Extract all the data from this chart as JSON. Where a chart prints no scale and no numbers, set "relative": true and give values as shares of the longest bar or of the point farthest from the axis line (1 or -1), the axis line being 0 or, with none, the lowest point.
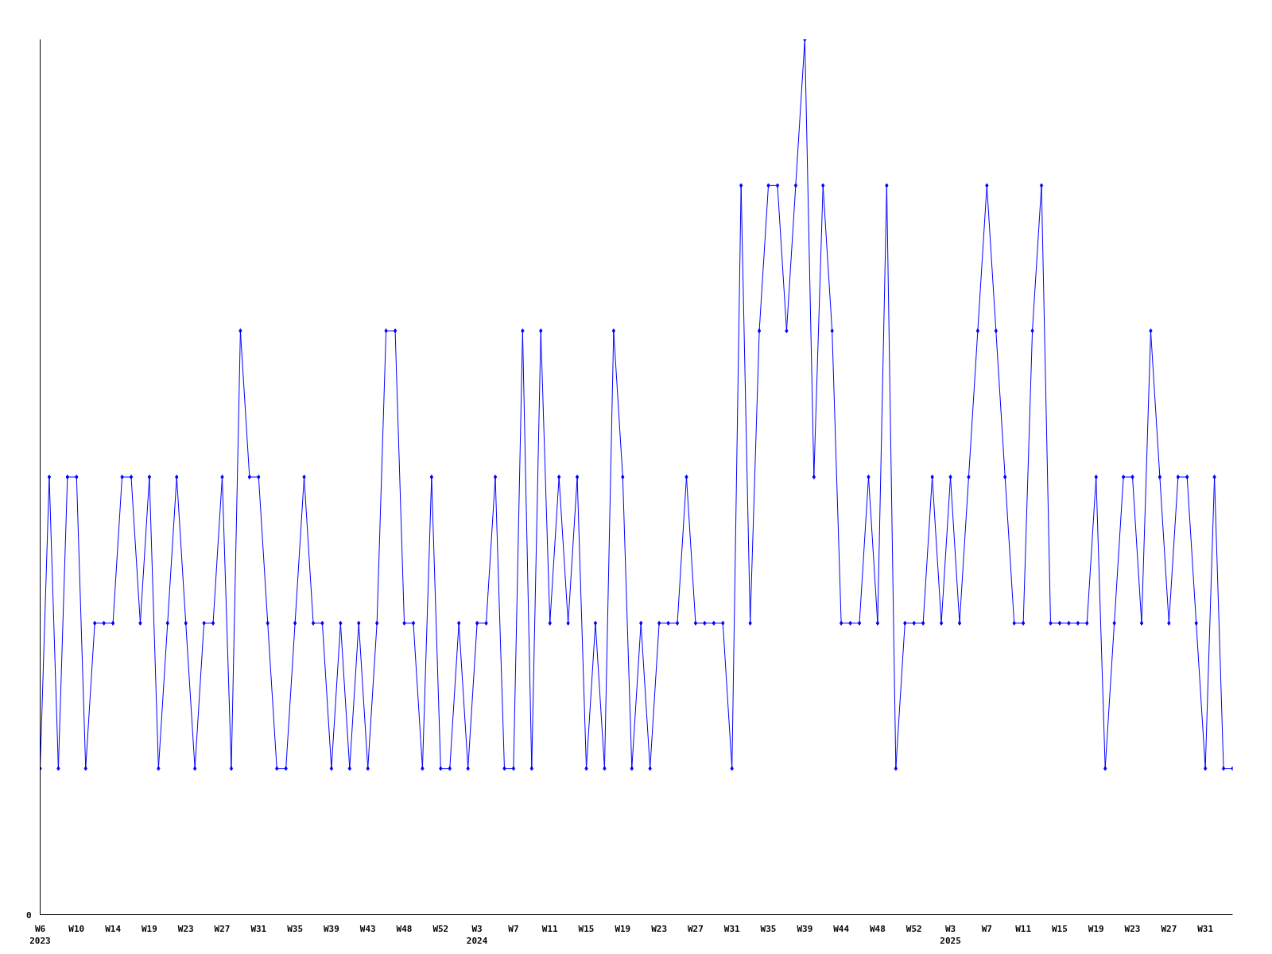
{
  "chart_data": {
    "type": "line",
    "relative": true,
    "annotations": [
      "0"
    ],
    "marker": "diamond",
    "grid": false,
    "categories": [
      "W6\n2023",
      null,
      null,
      null,
      "W10",
      null,
      null,
      null,
      "W14",
      null,
      null,
      null,
      "W19",
      null,
      null,
      null,
      "W23",
      null,
      null,
      null,
      "W27",
      null,
      null,
      null,
      "W31",
      null,
      null,
      null,
      "W35",
      null,
      null,
      null,
      "W39",
      null,
      null,
      null,
      "W43",
      null,
      null,
      null,
      "W48",
      null,
      null,
      null,
      "W52",
      null,
      null,
      null,
      "W3\n2024",
      null,
      null,
      null,
      "W7",
      null,
      null,
      null,
      "W11",
      null,
      null,
      null,
      "W15",
      null,
      null,
      null,
      "W19",
      null,
      null,
      null,
      "W23",
      null,
      null,
      null,
      "W27",
      null,
      null,
      null,
      "W31",
      null,
      null,
      null,
      "W35",
      null,
      null,
      null,
      "W39",
      null,
      null,
      null,
      "W44",
      null,
      null,
      null,
      "W48",
      null,
      null,
      null,
      "W52",
      null,
      null,
      null,
      "W3\n2025",
      null,
      null,
      null,
      "W7",
      null,
      null,
      null,
      "W11",
      null,
      null,
      null,
      "W15",
      null,
      null,
      null,
      "W19",
      null,
      null,
      null,
      "W23",
      null,
      null,
      null,
      "W27",
      null,
      null,
      null,
      "W31",
      null,
      null,
      null
    ],
    "series": [
      {
        "color": "#0000ff",
        "values": [
          0.167,
          0.5,
          0.167,
          0.5,
          0.5,
          0.167,
          0.333,
          0.333,
          0.333,
          0.5,
          0.5,
          0.333,
          0.5,
          0.167,
          0.333,
          0.5,
          0.333,
          0.167,
          0.333,
          0.333,
          0.5,
          0.167,
          0.667,
          0.5,
          0.5,
          0.333,
          0.167,
          0.167,
          0.333,
          0.5,
          0.333,
          0.333,
          0.167,
          0.333,
          0.167,
          0.333,
          0.167,
          0.333,
          0.667,
          0.667,
          0.333,
          0.333,
          0.167,
          0.5,
          0.167,
          0.167,
          0.333,
          0.167,
          0.333,
          0.333,
          0.5,
          0.167,
          0.167,
          0.667,
          0.167,
          0.667,
          0.333,
          0.5,
          0.333,
          0.5,
          0.167,
          0.333,
          0.167,
          0.667,
          0.5,
          0.167,
          0.333,
          0.167,
          0.333,
          0.333,
          0.333,
          0.5,
          0.333,
          0.333,
          0.333,
          0.333,
          0.167,
          0.833,
          0.333,
          0.667,
          0.833,
          0.833,
          0.667,
          0.833,
          1,
          0.5,
          0.833,
          0.667,
          0.333,
          0.333,
          0.333,
          0.5,
          0.333,
          0.833,
          0.167,
          0.333,
          0.333,
          0.333,
          0.5,
          0.333,
          0.5,
          0.333,
          0.5,
          0.667,
          0.833,
          0.667,
          0.5,
          0.333,
          0.333,
          0.667,
          0.833,
          0.333,
          0.333,
          0.333,
          0.333,
          0.333,
          0.5,
          0.167,
          0.333,
          0.5,
          0.5,
          0.333,
          0.667,
          0.5,
          0.333,
          0.5,
          0.5,
          0.333,
          0.167,
          0.5,
          0.167,
          0.167
        ]
      }
    ]
  }
}
